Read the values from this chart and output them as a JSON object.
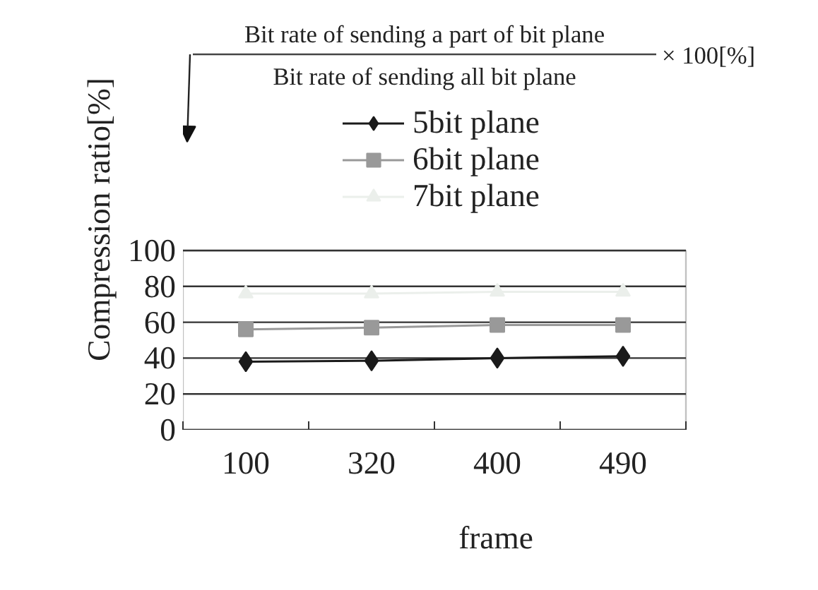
{
  "chart_data": {
    "type": "line",
    "annotations": [
      "Bit rate of sending a part of bit plane",
      "Bit rate of sending all bit plane",
      "× 100[%]"
    ],
    "xlabel": "frame",
    "ylabel": "Compression ratio[%]",
    "categories": [
      "100",
      "320",
      "400",
      "490"
    ],
    "series": [
      {
        "name": "5bit plane",
        "color": "#1a1a1a",
        "marker": "diamond",
        "values": [
          38,
          38.5,
          40,
          41
        ]
      },
      {
        "name": "6bit plane",
        "color": "#999999",
        "marker": "square",
        "values": [
          56,
          57,
          58.5,
          58.5
        ]
      },
      {
        "name": "7bit plane",
        "color": "#ebefeb",
        "marker": "triangle",
        "values": [
          76,
          76,
          77,
          77
        ]
      }
    ],
    "ylim": [
      0,
      100
    ],
    "yticks": [
      0,
      20,
      40,
      60,
      80,
      100
    ],
    "grid": "y",
    "legend": "top",
    "line_style": "solid"
  }
}
